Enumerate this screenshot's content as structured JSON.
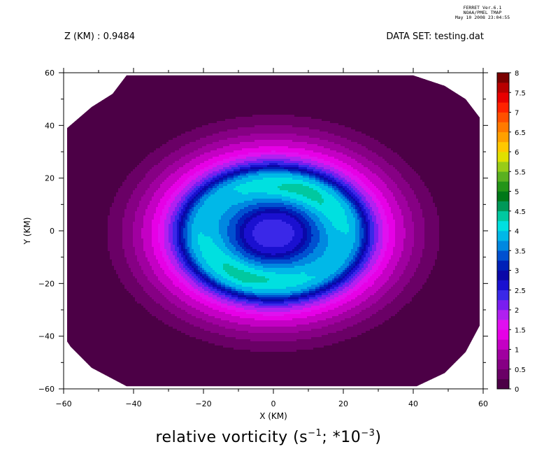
{
  "stamp": {
    "line1": "FERRET  Ver.6.1",
    "line2": "NOAA/PMEL TMAP",
    "line3": "May 10 2008 23:04:55"
  },
  "header": {
    "left": "Z (KM) : 0.9484",
    "right": "DATA SET: testing.dat"
  },
  "title": {
    "prefix": "relative vorticity (s",
    "sup1": "−1",
    "mid": "; *10",
    "sup2": "−3",
    "suffix": ")"
  },
  "chart_data": {
    "type": "heatmap",
    "xlabel": "X (KM)",
    "ylabel": "Y (KM)",
    "xlim": [
      -60,
      60
    ],
    "ylim": [
      -60,
      60
    ],
    "xticks": [
      -60,
      -40,
      -20,
      0,
      20,
      40,
      60
    ],
    "yticks": [
      -60,
      -40,
      -20,
      0,
      20,
      40,
      60
    ],
    "xtick_labels": [
      "−60",
      "−40",
      "−20",
      "0",
      "20",
      "40",
      "60"
    ],
    "ytick_labels": [
      "−60",
      "−40",
      "−20",
      "0",
      "20",
      "40",
      "60"
    ],
    "colorbar": {
      "levels": [
        0,
        0.25,
        0.5,
        0.75,
        1,
        1.25,
        1.5,
        1.75,
        2,
        2.25,
        2.5,
        2.75,
        3,
        3.25,
        3.5,
        3.75,
        4,
        4.25,
        4.5,
        4.75,
        5,
        5.25,
        5.5,
        5.75,
        6,
        6.25,
        6.5,
        6.75,
        7,
        7.25,
        7.5,
        7.75,
        8
      ],
      "labels": [
        "0",
        "0.5",
        "1",
        "1.5",
        "2",
        "2.5",
        "3",
        "3.5",
        "4",
        "4.5",
        "5",
        "5.5",
        "6",
        "6.5",
        "7",
        "7.5",
        "8"
      ],
      "label_values": [
        0,
        0.5,
        1,
        1.5,
        2,
        2.5,
        3,
        3.5,
        4,
        4.5,
        5,
        5.5,
        6,
        6.5,
        7,
        7.5,
        8
      ],
      "colors": [
        "#4c0046",
        "#6a0066",
        "#860084",
        "#a000a0",
        "#c400c4",
        "#e600e6",
        "#e010f0",
        "#b020f0",
        "#7a1ef0",
        "#3a28e8",
        "#1a10d0",
        "#0a08a8",
        "#0020b8",
        "#0050d0",
        "#0088e0",
        "#00b8e8",
        "#00e0e0",
        "#00c8a0",
        "#009858",
        "#007818",
        "#249418",
        "#5ab020",
        "#98cc18",
        "#e0e000",
        "#ffc800",
        "#ffa000",
        "#ff7a00",
        "#ff5000",
        "#ff2200",
        "#e80000",
        "#b80000",
        "#7a0000"
      ]
    },
    "field": {
      "domain_shape": "clipped octagon (model domain, no data in corners)",
      "description": "ring vortex centered near (0,-1) km",
      "profile_r_km": [
        0,
        4,
        7,
        10,
        14,
        17,
        20,
        23,
        26,
        28,
        30,
        32,
        35,
        38,
        41,
        45,
        50,
        55
      ],
      "profile_value": [
        2.45,
        2.45,
        2.55,
        3.2,
        3.8,
        4.1,
        4.1,
        3.7,
        2.6,
        2.05,
        1.7,
        1.35,
        1.05,
        0.75,
        0.5,
        0.25,
        0.15,
        0.1
      ]
    }
  }
}
